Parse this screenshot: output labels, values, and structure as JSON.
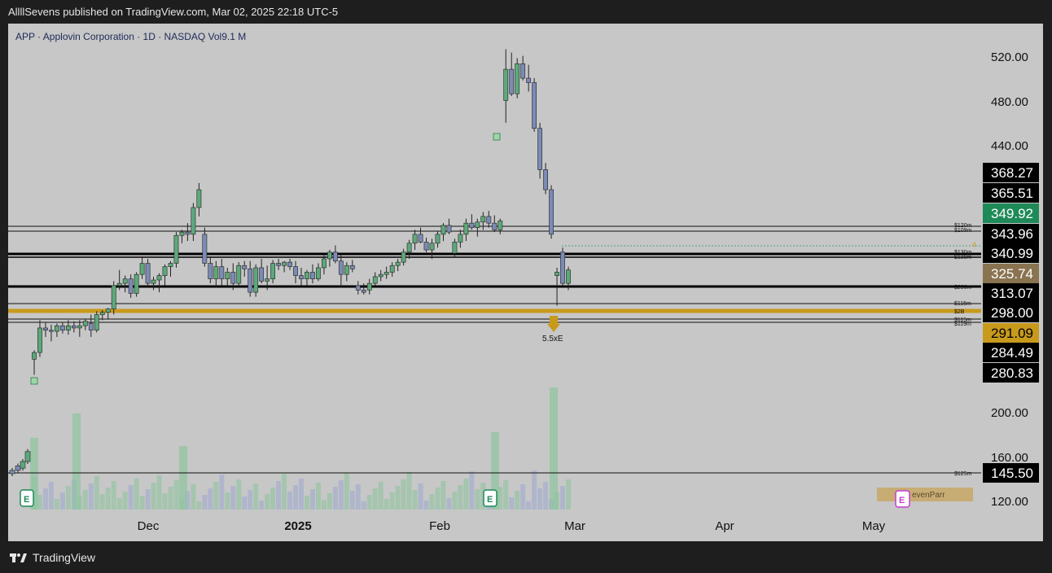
{
  "header": {
    "published": "AllllSevens published on TradingView.com, Mar 02, 2025 22:18 UTC-5"
  },
  "symbol": {
    "title": "APP · Applovin Corporation · 1D · NASDAQ  Vol9.1 M"
  },
  "footer": {
    "brand": "TradingView",
    "icon": "tradingview-logo-icon"
  },
  "colors": {
    "up": "#5da87a",
    "down": "#7b8bb5",
    "black": "#000000",
    "gold": "#c89a1c",
    "green_tag": "#1e8a58",
    "brown_tag": "#8a7351"
  },
  "chart_data": {
    "type": "candlestick",
    "x_axis_labels": [
      "Dec",
      "2025",
      "Feb",
      "Mar",
      "Apr",
      "May"
    ],
    "price_axis_ticks": [
      "520.00",
      "480.00",
      "440.00",
      "200.00",
      "160.00",
      "120.00"
    ],
    "price_tags": [
      {
        "label": "368.27",
        "style": "black"
      },
      {
        "label": "365.51",
        "style": "black"
      },
      {
        "label": "349.92",
        "style": "green"
      },
      {
        "label": "343.96",
        "style": "black"
      },
      {
        "label": "340.99",
        "style": "black"
      },
      {
        "label": "325.74",
        "style": "brown"
      },
      {
        "label": "313.07",
        "style": "black"
      },
      {
        "label": "298.00",
        "style": "black"
      },
      {
        "label": "291.09",
        "style": "gold"
      },
      {
        "label": "284.49",
        "style": "black"
      },
      {
        "label": "280.83",
        "style": "black"
      },
      {
        "label": "145.50",
        "style": "black"
      }
    ],
    "level_labels": [
      "$120m",
      "$109m",
      "$130m",
      "$139m",
      "$290m",
      "$115m",
      "$2B",
      "$115m",
      "$119m",
      "$125m"
    ],
    "annotations": {
      "earnings_multiple": "5.5xE",
      "watermark": "evenParr",
      "earnings_marker": "E",
      "d_marker": "d"
    },
    "candles": [
      {
        "o": 250,
        "h": 258,
        "l": 236,
        "c": 256
      },
      {
        "o": 256,
        "h": 285,
        "l": 252,
        "c": 278
      },
      {
        "o": 278,
        "h": 283,
        "l": 270,
        "c": 276
      },
      {
        "o": 276,
        "h": 281,
        "l": 266,
        "c": 275
      },
      {
        "o": 275,
        "h": 282,
        "l": 270,
        "c": 280
      },
      {
        "o": 280,
        "h": 283,
        "l": 273,
        "c": 276
      },
      {
        "o": 276,
        "h": 285,
        "l": 272,
        "c": 280
      },
      {
        "o": 280,
        "h": 284,
        "l": 274,
        "c": 278
      },
      {
        "o": 278,
        "h": 285,
        "l": 270,
        "c": 280
      },
      {
        "o": 280,
        "h": 286,
        "l": 276,
        "c": 284
      },
      {
        "o": 282,
        "h": 290,
        "l": 270,
        "c": 276
      },
      {
        "o": 276,
        "h": 293,
        "l": 274,
        "c": 290
      },
      {
        "o": 290,
        "h": 294,
        "l": 285,
        "c": 292
      },
      {
        "o": 292,
        "h": 296,
        "l": 286,
        "c": 295
      },
      {
        "o": 295,
        "h": 320,
        "l": 290,
        "c": 316
      },
      {
        "o": 316,
        "h": 330,
        "l": 312,
        "c": 318
      },
      {
        "o": 318,
        "h": 325,
        "l": 310,
        "c": 322
      },
      {
        "o": 322,
        "h": 326,
        "l": 305,
        "c": 309
      },
      {
        "o": 309,
        "h": 328,
        "l": 306,
        "c": 326
      },
      {
        "o": 326,
        "h": 341,
        "l": 322,
        "c": 336
      },
      {
        "o": 336,
        "h": 340,
        "l": 315,
        "c": 318
      },
      {
        "o": 318,
        "h": 324,
        "l": 312,
        "c": 321
      },
      {
        "o": 321,
        "h": 327,
        "l": 310,
        "c": 325
      },
      {
        "o": 325,
        "h": 335,
        "l": 316,
        "c": 333
      },
      {
        "o": 333,
        "h": 338,
        "l": 324,
        "c": 336
      },
      {
        "o": 336,
        "h": 364,
        "l": 332,
        "c": 361
      },
      {
        "o": 361,
        "h": 366,
        "l": 354,
        "c": 364
      },
      {
        "o": 364,
        "h": 372,
        "l": 356,
        "c": 362
      },
      {
        "o": 362,
        "h": 390,
        "l": 356,
        "c": 386
      },
      {
        "o": 386,
        "h": 408,
        "l": 378,
        "c": 402
      },
      {
        "o": 362,
        "h": 368,
        "l": 333,
        "c": 336
      },
      {
        "o": 336,
        "h": 342,
        "l": 318,
        "c": 322
      },
      {
        "o": 322,
        "h": 338,
        "l": 314,
        "c": 333
      },
      {
        "o": 333,
        "h": 340,
        "l": 316,
        "c": 322
      },
      {
        "o": 322,
        "h": 332,
        "l": 315,
        "c": 328
      },
      {
        "o": 328,
        "h": 336,
        "l": 312,
        "c": 318
      },
      {
        "o": 318,
        "h": 337,
        "l": 315,
        "c": 334
      },
      {
        "o": 334,
        "h": 338,
        "l": 324,
        "c": 331
      },
      {
        "o": 331,
        "h": 338,
        "l": 306,
        "c": 310
      },
      {
        "o": 310,
        "h": 335,
        "l": 306,
        "c": 332
      },
      {
        "o": 332,
        "h": 340,
        "l": 318,
        "c": 320
      },
      {
        "o": 320,
        "h": 334,
        "l": 312,
        "c": 322
      },
      {
        "o": 322,
        "h": 339,
        "l": 318,
        "c": 336
      },
      {
        "o": 336,
        "h": 340,
        "l": 330,
        "c": 334
      },
      {
        "o": 334,
        "h": 338,
        "l": 328,
        "c": 337
      },
      {
        "o": 337,
        "h": 340,
        "l": 330,
        "c": 333
      },
      {
        "o": 333,
        "h": 338,
        "l": 318,
        "c": 325
      },
      {
        "o": 325,
        "h": 332,
        "l": 316,
        "c": 322
      },
      {
        "o": 322,
        "h": 330,
        "l": 316,
        "c": 328
      },
      {
        "o": 328,
        "h": 335,
        "l": 318,
        "c": 322
      },
      {
        "o": 322,
        "h": 336,
        "l": 320,
        "c": 332
      },
      {
        "o": 332,
        "h": 344,
        "l": 326,
        "c": 340
      },
      {
        "o": 340,
        "h": 348,
        "l": 333,
        "c": 346
      },
      {
        "o": 346,
        "h": 352,
        "l": 336,
        "c": 338
      },
      {
        "o": 338,
        "h": 344,
        "l": 314,
        "c": 326
      },
      {
        "o": 326,
        "h": 337,
        "l": 320,
        "c": 334
      },
      {
        "o": 334,
        "h": 339,
        "l": 328,
        "c": 331
      },
      {
        "o": 316,
        "h": 320,
        "l": 308,
        "c": 312
      },
      {
        "o": 312,
        "h": 318,
        "l": 308,
        "c": 310
      },
      {
        "o": 312,
        "h": 322,
        "l": 308,
        "c": 318
      },
      {
        "o": 318,
        "h": 328,
        "l": 316,
        "c": 324
      },
      {
        "o": 324,
        "h": 330,
        "l": 320,
        "c": 326
      },
      {
        "o": 326,
        "h": 333,
        "l": 322,
        "c": 328
      },
      {
        "o": 328,
        "h": 337,
        "l": 324,
        "c": 334
      },
      {
        "o": 334,
        "h": 340,
        "l": 329,
        "c": 337
      },
      {
        "o": 337,
        "h": 349,
        "l": 334,
        "c": 346
      },
      {
        "o": 346,
        "h": 357,
        "l": 340,
        "c": 354
      },
      {
        "o": 354,
        "h": 366,
        "l": 348,
        "c": 362
      },
      {
        "o": 362,
        "h": 368,
        "l": 354,
        "c": 355
      },
      {
        "o": 355,
        "h": 359,
        "l": 346,
        "c": 348
      },
      {
        "o": 348,
        "h": 358,
        "l": 340,
        "c": 354
      },
      {
        "o": 354,
        "h": 365,
        "l": 350,
        "c": 362
      },
      {
        "o": 362,
        "h": 372,
        "l": 356,
        "c": 370
      },
      {
        "o": 370,
        "h": 376,
        "l": 362,
        "c": 364
      },
      {
        "o": 345,
        "h": 358,
        "l": 341,
        "c": 355
      },
      {
        "o": 355,
        "h": 366,
        "l": 350,
        "c": 362
      },
      {
        "o": 362,
        "h": 376,
        "l": 356,
        "c": 372
      },
      {
        "o": 372,
        "h": 380,
        "l": 366,
        "c": 368
      },
      {
        "o": 368,
        "h": 376,
        "l": 360,
        "c": 373
      },
      {
        "o": 373,
        "h": 382,
        "l": 366,
        "c": 378
      },
      {
        "o": 378,
        "h": 383,
        "l": 368,
        "c": 372
      },
      {
        "o": 372,
        "h": 379,
        "l": 364,
        "c": 366
      },
      {
        "o": 366,
        "h": 376,
        "l": 362,
        "c": 374
      },
      {
        "o": 482,
        "h": 528,
        "l": 462,
        "c": 510
      },
      {
        "o": 510,
        "h": 525,
        "l": 486,
        "c": 488
      },
      {
        "o": 488,
        "h": 520,
        "l": 484,
        "c": 515
      },
      {
        "o": 515,
        "h": 522,
        "l": 500,
        "c": 502
      },
      {
        "o": 502,
        "h": 514,
        "l": 490,
        "c": 498
      },
      {
        "o": 498,
        "h": 502,
        "l": 454,
        "c": 457
      },
      {
        "o": 457,
        "h": 462,
        "l": 412,
        "c": 420
      },
      {
        "o": 420,
        "h": 426,
        "l": 398,
        "c": 402
      },
      {
        "o": 402,
        "h": 406,
        "l": 358,
        "c": 362
      },
      {
        "o": 325,
        "h": 332,
        "l": 298,
        "c": 328
      },
      {
        "o": 346,
        "h": 350,
        "l": 316,
        "c": 318
      },
      {
        "o": 318,
        "h": 333,
        "l": 312,
        "c": 330
      }
    ]
  }
}
